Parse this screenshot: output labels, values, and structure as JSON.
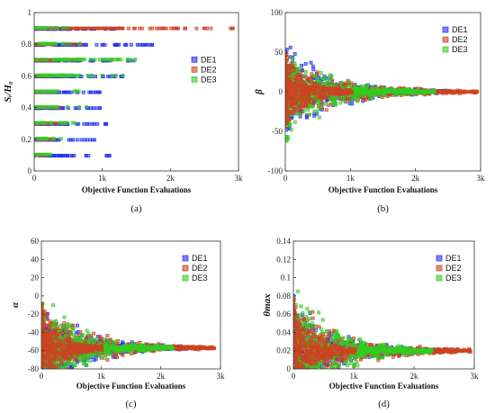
{
  "chart_data": [
    {
      "type": "scatter",
      "panel_label": "(a)",
      "xlabel": "Objective Function Evaluations",
      "ylabel": "Sᵢ/H₀",
      "xlim": [
        0,
        3000
      ],
      "ylim": [
        0,
        1
      ],
      "xticks": [
        "0",
        "1k",
        "2k",
        "3k"
      ],
      "yticks": [
        "0",
        "0.2",
        "0.4",
        "0.6",
        "0.8",
        "1"
      ],
      "legend": "center-right",
      "pattern": "levels",
      "levels": [
        0.1,
        0.2,
        0.3,
        0.4,
        0.5,
        0.6,
        0.7,
        0.8,
        0.9
      ],
      "series": [
        {
          "name": "DE1",
          "color": "#2233ee",
          "extent": [
            1200,
            900,
            1100,
            1000,
            1100,
            1300,
            1500,
            1800,
            1200
          ]
        },
        {
          "name": "DE2",
          "color": "#cc4422",
          "extent": [
            400,
            300,
            500,
            400,
            300,
            500,
            700,
            700,
            2950
          ]
        },
        {
          "name": "DE3",
          "color": "#33cc22",
          "extent": [
            300,
            400,
            600,
            800,
            700,
            1500,
            1600,
            700,
            600
          ]
        }
      ]
    },
    {
      "type": "scatter",
      "panel_label": "(b)",
      "xlabel": "Objective Function Evaluations",
      "ylabel": "β",
      "xlim": [
        0,
        3000
      ],
      "ylim": [
        -100,
        100
      ],
      "xticks": [
        "0",
        "1k",
        "2k",
        "3k"
      ],
      "yticks": [
        "-100",
        "-50",
        "0",
        "50",
        "100"
      ],
      "legend": "top-right",
      "pattern": "funnel",
      "final_value": 0,
      "series": [
        {
          "name": "DE1",
          "color": "#2233ee",
          "x_end": 2500,
          "spread": 75
        },
        {
          "name": "DE2",
          "color": "#cc4422",
          "x_end": 2950,
          "spread": 60
        },
        {
          "name": "DE3",
          "color": "#33cc22",
          "x_end": 2300,
          "spread": 80
        }
      ]
    },
    {
      "type": "scatter",
      "panel_label": "(c)",
      "xlabel": "Objective Function Evaluations",
      "ylabel": "α",
      "xlim": [
        0,
        3000
      ],
      "ylim": [
        -80,
        60
      ],
      "xticks": [
        "0",
        "1k",
        "2k",
        "3k"
      ],
      "yticks": [
        "-80",
        "-60",
        "-40",
        "-20",
        "0",
        "20",
        "40",
        "60"
      ],
      "legend": "top-right",
      "pattern": "funnel",
      "final_value": -57,
      "series": [
        {
          "name": "DE1",
          "color": "#2233ee",
          "x_end": 2500,
          "spread": 70
        },
        {
          "name": "DE2",
          "color": "#cc4422",
          "x_end": 2900,
          "spread": 60
        },
        {
          "name": "DE3",
          "color": "#33cc22",
          "x_end": 2200,
          "spread": 75
        }
      ]
    },
    {
      "type": "scatter",
      "panel_label": "(d)",
      "xlabel": "Objective Function Evaluations",
      "ylabel": "θmax",
      "xlim": [
        0,
        3000
      ],
      "ylim": [
        0,
        0.14
      ],
      "xticks": [
        "0",
        "1k",
        "2k",
        "3k"
      ],
      "yticks": [
        "0",
        "0.02",
        "0.04",
        "0.06",
        "0.08",
        "0.1",
        "0.12",
        "0.14"
      ],
      "legend": "top-right",
      "pattern": "funnel",
      "final_value": 0.02,
      "series": [
        {
          "name": "DE1",
          "color": "#2233ee",
          "x_end": 2500,
          "spread": 0.07
        },
        {
          "name": "DE2",
          "color": "#cc4422",
          "x_end": 2950,
          "spread": 0.07
        },
        {
          "name": "DE3",
          "color": "#33cc22",
          "x_end": 2300,
          "spread": 0.1
        }
      ]
    }
  ]
}
